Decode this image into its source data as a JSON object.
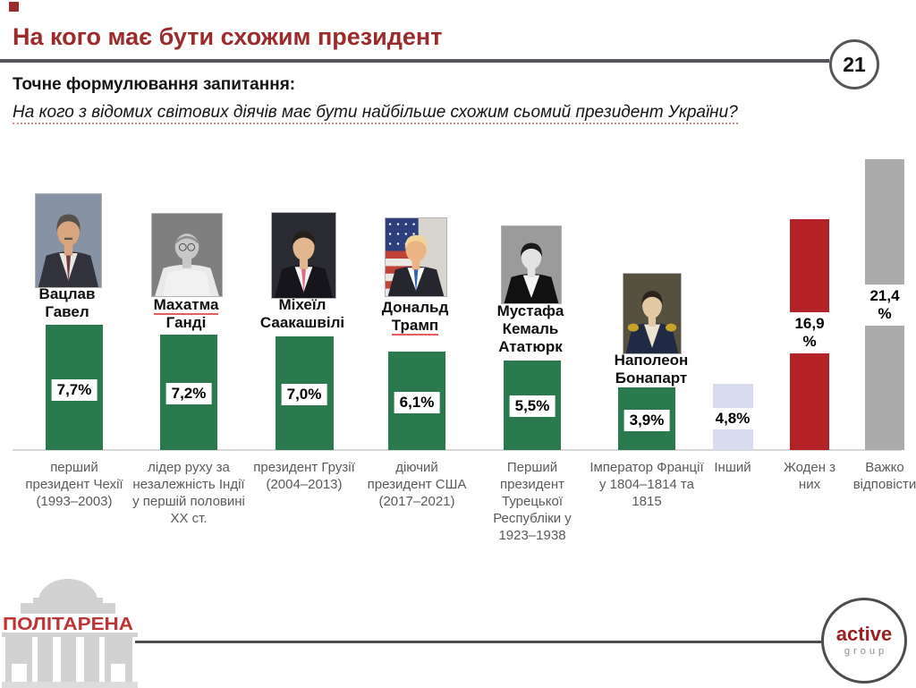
{
  "slide": {
    "title": "На кого має бути схожим президент",
    "page_number": "21",
    "question_label": "Точне формулювання запитання:",
    "question_text": "На кого з відомих світових діячів має бути найбільше схожим сьомий президент України?"
  },
  "chart_data": {
    "type": "bar",
    "title": "На кого має бути схожим президент",
    "xlabel": "",
    "ylabel": "",
    "unit": "%",
    "ylim": [
      0,
      25
    ],
    "grid": false,
    "legend": "none",
    "categories": [
      "Вацлав Гавел",
      "Махатма Ганді",
      "Міхеїл Саакашвілі",
      "Дональд Трамп",
      "Мустафа Кемаль Ататюрк",
      "Наполеон Бонапарт",
      "Інший",
      "Жоден з них",
      "Важко відповісти"
    ],
    "values": [
      7.7,
      7.2,
      7.0,
      6.1,
      5.5,
      3.9,
      4.8,
      16.9,
      21.4
    ],
    "value_labels": [
      "7,7%",
      "7,2%",
      "7,0%",
      "6,1%",
      "5,5%",
      "3,9%",
      "4,8%",
      "16,9 %",
      "21,4 %"
    ],
    "name_lines": [
      [
        "Вацлав",
        "Гавел"
      ],
      [
        "Махатма",
        "Ганді"
      ],
      [
        "Міхеїл",
        "Саакашвілі"
      ],
      [
        "Дональд",
        "Трамп"
      ],
      [
        "Мустафа",
        "Кемаль",
        "Ататюрк"
      ],
      [
        "Наполеон",
        "Бонапарт"
      ],
      null,
      null,
      null
    ],
    "descriptions": [
      "перший президент Чехії (1993–2003)",
      "лідер руху за незалежність Індії у першій половині XX ст.",
      "президент Грузії (2004–2013)",
      "діючий президент США (2017–2021)",
      "Перший президент Турецької Республіки у 1923–1938",
      "Імператор Франції у 1804–1814 та 1815",
      "",
      "",
      ""
    ],
    "colors": {
      "person": "#2b7a4f",
      "other": "#d9dbef",
      "none": "#b42126",
      "hard": "#ababab",
      "axis": "#d6d6d6"
    },
    "color_keys": [
      "person",
      "person",
      "person",
      "person",
      "person",
      "person",
      "other",
      "none",
      "hard"
    ],
    "portraits": [
      {
        "person": "Вацлав Гавел",
        "style": "color-photo",
        "bg": "#8793a4",
        "skin": "#d9a57e",
        "hair": "#57504c",
        "coat": "#32323c",
        "shirt": "#e9e6df",
        "tie": "#6e3a44",
        "mustache": true
      },
      {
        "person": "Махатма Ганді",
        "style": "bw-photo",
        "bg": "#7f7f7f",
        "skin": "#c8c8c8",
        "hair": "#8f8f8f",
        "coat": "#e9e9e9",
        "shirt": "none",
        "tie": "none",
        "bald": true,
        "robe": true,
        "glasses": true
      },
      {
        "person": "Міхеїл Саакашвілі",
        "style": "color-photo",
        "bg": "#2a2a33",
        "skin": "#e2b68e",
        "hair": "#241f1b",
        "coat": "#15151b",
        "shirt": "#f3f3f3",
        "tie": "#e06a84"
      },
      {
        "person": "Дональд Трамп",
        "style": "color-photo",
        "bg": "#d8d5cf",
        "skin": "#edb483",
        "hair": "#f2d494",
        "coat": "#26262e",
        "shirt": "#ffffff",
        "tie": "#2f62b5",
        "flag": true
      },
      {
        "person": "Мустафа Кемаль Ататюрк",
        "style": "bw-photo",
        "bg": "#9b9b9b",
        "skin": "#e3e3e3",
        "hair": "#1a1a1a",
        "coat": "#111111",
        "shirt": "#f5f5f5",
        "tie": "none",
        "bow": true
      },
      {
        "person": "Наполеон Бонапарт",
        "style": "painting",
        "bg": "#56513f",
        "skin": "#e2c9a4",
        "hair": "#2a221c",
        "coat": "#202a45",
        "shirt": "#ece4d2",
        "tie": "none",
        "epaulettes": "#c9a227"
      }
    ]
  },
  "footer": {
    "politarena": "ПОЛІТАРЕНА",
    "active_top": "active",
    "active_bottom": "group"
  }
}
